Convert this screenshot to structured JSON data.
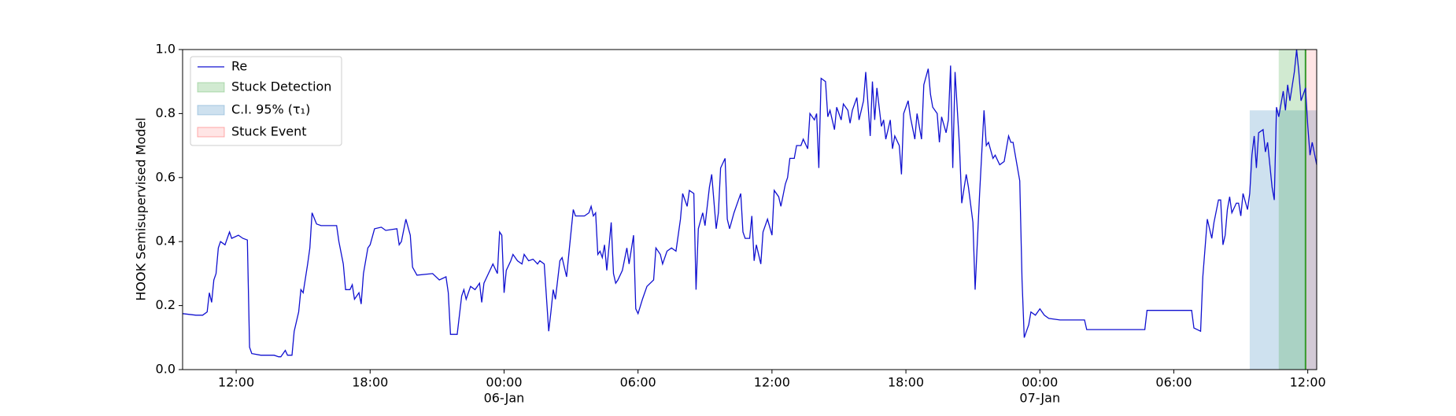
{
  "chart_data": {
    "type": "line",
    "ylabel": "HOOK Semisupervised Model",
    "xlim": [
      -14.4,
      36.4
    ],
    "ylim": [
      0,
      1
    ],
    "xticks": [
      {
        "value": -12,
        "label": "12:00"
      },
      {
        "value": -6,
        "label": "18:00"
      },
      {
        "value": 0,
        "label": "00:00",
        "date": "06-Jan"
      },
      {
        "value": 6,
        "label": "06:00"
      },
      {
        "value": 12,
        "label": "12:00"
      },
      {
        "value": 18,
        "label": "18:00"
      },
      {
        "value": 24,
        "label": "00:00",
        "date": "07-Jan"
      },
      {
        "value": 30,
        "label": "06:00"
      },
      {
        "value": 36,
        "label": "12:00"
      }
    ],
    "yticks": [
      {
        "value": 0,
        "label": "0.0"
      },
      0.2,
      0.4,
      0.6,
      0.8,
      {
        "value": 1,
        "label": "1.0"
      }
    ],
    "legend": "upper left",
    "series": [
      {
        "name": "Re",
        "type": "line",
        "color": "#1010d0",
        "x": [
          -14.4,
          -13.8,
          -13.5,
          -13.3,
          -13.2,
          -13.1,
          -13.0,
          -12.9,
          -12.8,
          -12.7,
          -12.5,
          -12.3,
          -12.2,
          -11.9,
          -11.7,
          -11.5,
          -11.4,
          -11.3,
          -10.9,
          -10.3,
          -10.1,
          -10.0,
          -9.8,
          -9.7,
          -9.5,
          -9.4,
          -9.2,
          -9.1,
          -9.0,
          -8.8,
          -8.7,
          -8.6,
          -8.4,
          -8.2,
          -7.5,
          -7.4,
          -7.2,
          -7.1,
          -6.9,
          -6.8,
          -6.7,
          -6.5,
          -6.4,
          -6.3,
          -6.1,
          -6.0,
          -5.8,
          -5.5,
          -5.3,
          -4.8,
          -4.7,
          -4.6,
          -4.4,
          -4.2,
          -4.1,
          -3.9,
          -3.2,
          -2.9,
          -2.6,
          -2.5,
          -2.4,
          -2.1,
          -1.9,
          -1.8,
          -1.7,
          -1.5,
          -1.3,
          -1.1,
          -1.0,
          -0.9,
          -0.7,
          -0.5,
          -0.3,
          -0.2,
          -0.1,
          0.0,
          0.1,
          0.3,
          0.4,
          0.6,
          0.8,
          0.9,
          1.1,
          1.3,
          1.5,
          1.6,
          1.8,
          2.0,
          2.1,
          2.2,
          2.3,
          2.5,
          2.6,
          2.8,
          2.9,
          3.1,
          3.2,
          3.6,
          3.8,
          3.9,
          4.0,
          4.1,
          4.2,
          4.3,
          4.4,
          4.5,
          4.6,
          4.8,
          4.9,
          5.0,
          5.1,
          5.3,
          5.5,
          5.6,
          5.8,
          5.9,
          6.0,
          6.2,
          6.4,
          6.7,
          6.8,
          7.0,
          7.1,
          7.3,
          7.5,
          7.7,
          7.9,
          8.0,
          8.2,
          8.3,
          8.5,
          8.6,
          8.7,
          8.9,
          9.0,
          9.2,
          9.3,
          9.5,
          9.6,
          9.7,
          9.9,
          10.0,
          10.1,
          10.3,
          10.5,
          10.6,
          10.7,
          10.8,
          11.0,
          11.1,
          11.2,
          11.3,
          11.5,
          11.6,
          11.8,
          12.0,
          12.1,
          12.3,
          12.4,
          12.6,
          12.7,
          12.8,
          13.0,
          13.1,
          13.3,
          13.4,
          13.6,
          13.7,
          13.9,
          14.0,
          14.1,
          14.2,
          14.4,
          14.5,
          14.6,
          14.8,
          14.9,
          15.1,
          15.2,
          15.4,
          15.5,
          15.6,
          15.8,
          15.9,
          16.1,
          16.2,
          16.4,
          16.5,
          16.6,
          16.7,
          16.9,
          17.0,
          17.1,
          17.3,
          17.4,
          17.5,
          17.7,
          17.8,
          17.9,
          18.1,
          18.2,
          18.4,
          18.5,
          18.7,
          18.8,
          19.0,
          19.1,
          19.2,
          19.4,
          19.5,
          19.6,
          19.8,
          19.9,
          20.0,
          20.1,
          20.2,
          20.4,
          20.5,
          20.7,
          20.8,
          21.0,
          21.1,
          21.3,
          21.5,
          21.6,
          21.7,
          21.9,
          22.0,
          22.2,
          22.4,
          22.6,
          22.7,
          22.8,
          23.1,
          23.2,
          23.3,
          23.5,
          23.6,
          23.8,
          24.0,
          24.2,
          24.4,
          24.9,
          26.0,
          26.1,
          28.7,
          28.8,
          30.8,
          30.9,
          31.2,
          31.3,
          31.5,
          31.7,
          31.8,
          32.0,
          32.1,
          32.2,
          32.3,
          32.4,
          32.5,
          32.6,
          32.8,
          32.9,
          33.0,
          33.1,
          33.3,
          33.4,
          33.5,
          33.6,
          33.7,
          33.8,
          34.0,
          34.1,
          34.2,
          34.4,
          34.5,
          34.6,
          34.7,
          34.9,
          35.0,
          35.1,
          35.2,
          35.4,
          35.5,
          35.6,
          35.7,
          35.9,
          36.0,
          36.1,
          36.2,
          36.4
        ],
        "values": [
          0.175,
          0.17,
          0.17,
          0.18,
          0.24,
          0.21,
          0.28,
          0.3,
          0.38,
          0.4,
          0.39,
          0.43,
          0.41,
          0.42,
          0.41,
          0.405,
          0.07,
          0.05,
          0.045,
          0.045,
          0.04,
          0.04,
          0.06,
          0.045,
          0.045,
          0.12,
          0.18,
          0.25,
          0.24,
          0.33,
          0.38,
          0.49,
          0.455,
          0.45,
          0.45,
          0.4,
          0.33,
          0.25,
          0.25,
          0.265,
          0.22,
          0.24,
          0.205,
          0.3,
          0.38,
          0.39,
          0.44,
          0.445,
          0.435,
          0.44,
          0.39,
          0.4,
          0.47,
          0.42,
          0.32,
          0.295,
          0.3,
          0.28,
          0.29,
          0.24,
          0.11,
          0.11,
          0.23,
          0.25,
          0.22,
          0.26,
          0.25,
          0.27,
          0.21,
          0.27,
          0.3,
          0.33,
          0.3,
          0.43,
          0.42,
          0.24,
          0.31,
          0.34,
          0.36,
          0.34,
          0.33,
          0.36,
          0.34,
          0.345,
          0.33,
          0.34,
          0.33,
          0.12,
          0.18,
          0.25,
          0.22,
          0.34,
          0.35,
          0.29,
          0.36,
          0.5,
          0.48,
          0.48,
          0.49,
          0.51,
          0.48,
          0.49,
          0.36,
          0.37,
          0.35,
          0.39,
          0.31,
          0.46,
          0.3,
          0.27,
          0.28,
          0.31,
          0.38,
          0.33,
          0.42,
          0.19,
          0.175,
          0.22,
          0.26,
          0.28,
          0.38,
          0.36,
          0.33,
          0.37,
          0.38,
          0.37,
          0.47,
          0.55,
          0.51,
          0.56,
          0.55,
          0.25,
          0.44,
          0.49,
          0.45,
          0.57,
          0.61,
          0.44,
          0.49,
          0.63,
          0.66,
          0.47,
          0.44,
          0.49,
          0.53,
          0.55,
          0.43,
          0.41,
          0.41,
          0.48,
          0.34,
          0.39,
          0.33,
          0.43,
          0.47,
          0.42,
          0.56,
          0.54,
          0.51,
          0.58,
          0.6,
          0.66,
          0.66,
          0.7,
          0.7,
          0.72,
          0.69,
          0.8,
          0.78,
          0.8,
          0.63,
          0.91,
          0.9,
          0.79,
          0.81,
          0.75,
          0.82,
          0.78,
          0.83,
          0.81,
          0.77,
          0.81,
          0.85,
          0.78,
          0.84,
          0.93,
          0.73,
          0.9,
          0.78,
          0.88,
          0.76,
          0.78,
          0.72,
          0.78,
          0.69,
          0.73,
          0.7,
          0.61,
          0.8,
          0.84,
          0.79,
          0.72,
          0.8,
          0.72,
          0.89,
          0.94,
          0.86,
          0.82,
          0.8,
          0.71,
          0.79,
          0.74,
          0.78,
          0.95,
          0.63,
          0.93,
          0.7,
          0.52,
          0.61,
          0.57,
          0.46,
          0.25,
          0.55,
          0.81,
          0.7,
          0.71,
          0.66,
          0.67,
          0.64,
          0.65,
          0.73,
          0.71,
          0.71,
          0.59,
          0.28,
          0.1,
          0.14,
          0.18,
          0.17,
          0.19,
          0.17,
          0.16,
          0.155,
          0.155,
          0.125,
          0.125,
          0.185,
          0.185,
          0.13,
          0.12,
          0.29,
          0.47,
          0.41,
          0.46,
          0.53,
          0.53,
          0.39,
          0.42,
          0.5,
          0.54,
          0.49,
          0.52,
          0.52,
          0.48,
          0.55,
          0.5,
          0.55,
          0.67,
          0.73,
          0.63,
          0.74,
          0.75,
          0.68,
          0.71,
          0.57,
          0.53,
          0.82,
          0.79,
          0.87,
          0.81,
          0.89,
          0.84,
          0.93,
          1.0,
          0.93,
          0.84,
          0.88,
          0.76,
          0.67,
          0.71,
          0.64
        ]
      },
      {
        "name": "Stuck Detection",
        "type": "span",
        "color": "#2ca02c",
        "x": [
          34.7,
          35.9
        ]
      },
      {
        "name": "C.I. 95% (τ₁)",
        "type": "span",
        "color": "#1f77b4",
        "x": [
          33.4,
          36.4
        ],
        "y": [
          0,
          0.81
        ]
      },
      {
        "name": "Stuck Event",
        "type": "span",
        "color": "#ff0000",
        "x": [
          35.9,
          36.4
        ]
      }
    ]
  }
}
